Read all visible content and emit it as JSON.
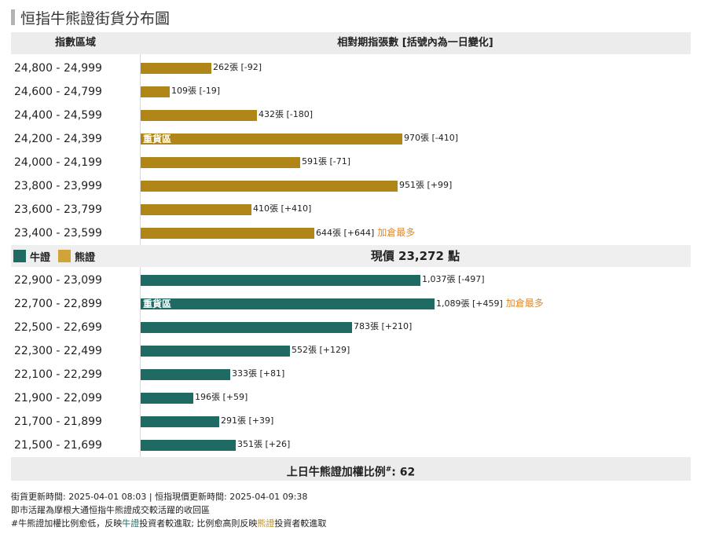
{
  "title": "恒指牛熊證街貨分布圖",
  "header": {
    "col1": "指數區域",
    "col2": "相對期指張數 [括號內為一日變化]"
  },
  "colors": {
    "bear": "#b08618",
    "bull": "#1f6b63",
    "hot": "#e08a2a",
    "bear_legend": "#cfa53a"
  },
  "chart_data": {
    "type": "bar",
    "orientation": "horizontal",
    "unit": "張",
    "bear": [
      {
        "range": "24,800 - 24,999",
        "value": 262,
        "label": "262張 [-92]",
        "tag": "",
        "hot": ""
      },
      {
        "range": "24,600 - 24,799",
        "value": 109,
        "label": "109張 [-19]",
        "tag": "",
        "hot": ""
      },
      {
        "range": "24,400 - 24,599",
        "value": 432,
        "label": "432張 [-180]",
        "tag": "",
        "hot": ""
      },
      {
        "range": "24,200 - 24,399",
        "value": 970,
        "label": "970張 [-410]",
        "tag": "重貨區",
        "hot": ""
      },
      {
        "range": "24,000 - 24,199",
        "value": 591,
        "label": "591張 [-71]",
        "tag": "",
        "hot": ""
      },
      {
        "range": "23,800 - 23,999",
        "value": 951,
        "label": "951張 [+99]",
        "tag": "",
        "hot": ""
      },
      {
        "range": "23,600 - 23,799",
        "value": 410,
        "label": "410張 [+410]",
        "tag": "",
        "hot": ""
      },
      {
        "range": "23,400 - 23,599",
        "value": 644,
        "label": "644張 [+644]",
        "tag": "",
        "hot": "加倉最多"
      }
    ],
    "bull": [
      {
        "range": "22,900 - 23,099",
        "value": 1037,
        "label": "1,037張 [-497]",
        "tag": "",
        "hot": ""
      },
      {
        "range": "22,700 - 22,899",
        "value": 1089,
        "label": "1,089張 [+459]",
        "tag": "重貨區",
        "hot": "加倉最多"
      },
      {
        "range": "22,500 - 22,699",
        "value": 783,
        "label": "783張 [+210]",
        "tag": "",
        "hot": ""
      },
      {
        "range": "22,300 - 22,499",
        "value": 552,
        "label": "552張 [+129]",
        "tag": "",
        "hot": ""
      },
      {
        "range": "22,100 - 22,299",
        "value": 333,
        "label": "333張 [+81]",
        "tag": "",
        "hot": ""
      },
      {
        "range": "21,900 - 22,099",
        "value": 196,
        "label": "196張 [+59]",
        "tag": "",
        "hot": ""
      },
      {
        "range": "21,700 - 21,899",
        "value": 291,
        "label": "291張 [+39]",
        "tag": "",
        "hot": ""
      },
      {
        "range": "21,500 - 21,699",
        "value": 351,
        "label": "351張 [+26]",
        "tag": "",
        "hot": ""
      }
    ],
    "max_value": 1089
  },
  "legend": {
    "bull": "牛證",
    "bear": "熊證"
  },
  "current_price": "現價 23,272 點",
  "ratio": {
    "label": "上日牛熊證加權比例",
    "sup": "#",
    "value": ": 62"
  },
  "footer": {
    "line1": "街貨更新時間: 2025-04-01 08:03   |   恒指現價更新時間: 2025-04-01 09:38",
    "line2": "即市活躍為摩根大通恒指牛熊證成交較活躍的收回區",
    "line3_a": "#牛熊證加權比例愈低，反映",
    "line3_bull": "牛證",
    "line3_b": "投資者較進取; 比例愈高則反映",
    "line3_bear": "熊證",
    "line3_c": "投資者較進取"
  }
}
